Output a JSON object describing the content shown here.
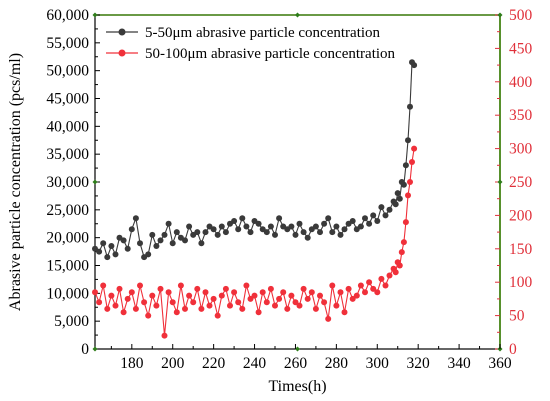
{
  "chart_data": {
    "type": "line",
    "xlabel": "Times(h)",
    "ylabel": "Abrasive particle concentration (pcs/ml)",
    "xlim": [
      162,
      360
    ],
    "xticks": [
      180,
      200,
      220,
      240,
      260,
      280,
      300,
      320,
      340,
      360
    ],
    "ylim_left": [
      0,
      60000
    ],
    "yticks_left": [
      0,
      5000,
      10000,
      15000,
      20000,
      25000,
      30000,
      35000,
      40000,
      45000,
      50000,
      55000,
      60000
    ],
    "ytick_labels_left": [
      "0",
      "5,000",
      "10,000",
      "15,000",
      "20,000",
      "25,000",
      "30,000",
      "35,000",
      "40,000",
      "45,000",
      "50,000",
      "55,000",
      "60,000"
    ],
    "ylim_right": [
      0,
      500
    ],
    "yticks_right": [
      0,
      50,
      100,
      150,
      200,
      250,
      300,
      350,
      400,
      450,
      500
    ],
    "ytick_labels_right": [
      "0",
      "50",
      "100",
      "150",
      "200",
      "250",
      "300",
      "350",
      "400",
      "450",
      "500"
    ],
    "legend_position": "top-left",
    "grid": false,
    "series": [
      {
        "name": "5-50μm abrasive particle concentration",
        "axis": "left",
        "color": "#3a3a3a",
        "marker": "circle",
        "x": [
          162,
          164,
          166,
          168,
          170,
          172,
          174,
          176,
          178,
          180,
          182,
          184,
          186,
          188,
          190,
          192,
          194,
          196,
          198,
          200,
          202,
          204,
          206,
          208,
          210,
          212,
          214,
          216,
          218,
          220,
          222,
          224,
          226,
          228,
          230,
          232,
          234,
          236,
          238,
          240,
          242,
          244,
          246,
          248,
          250,
          252,
          254,
          256,
          258,
          260,
          262,
          264,
          266,
          268,
          270,
          272,
          274,
          276,
          278,
          280,
          282,
          284,
          286,
          288,
          290,
          292,
          294,
          296,
          298,
          300,
          302,
          304,
          306,
          308,
          309,
          310,
          311,
          312,
          313,
          314,
          315,
          316,
          317,
          318
        ],
        "values": [
          18000,
          17500,
          19000,
          16500,
          18500,
          17000,
          20000,
          19500,
          18000,
          21500,
          23500,
          19000,
          16500,
          17000,
          20500,
          18500,
          19500,
          20500,
          22500,
          19000,
          21000,
          20000,
          19500,
          22000,
          20500,
          21000,
          19000,
          21000,
          22000,
          21500,
          20500,
          22000,
          21000,
          22500,
          23000,
          21500,
          23500,
          22000,
          21000,
          23000,
          22500,
          21500,
          21000,
          22000,
          20500,
          23500,
          22000,
          21500,
          22000,
          20500,
          22500,
          21000,
          20000,
          21500,
          22000,
          21000,
          22500,
          23500,
          21000,
          22000,
          20500,
          21500,
          22500,
          23000,
          21500,
          22000,
          23500,
          22500,
          24000,
          23000,
          25500,
          24000,
          25000,
          26500,
          26000,
          28000,
          27000,
          30000,
          29500,
          33000,
          37500,
          43500,
          51500,
          51000
        ]
      },
      {
        "name": "50-100μm abrasive particle concentration",
        "axis": "right",
        "color": "#f0303a",
        "marker": "circle",
        "x": [
          162,
          164,
          166,
          168,
          170,
          172,
          174,
          176,
          178,
          180,
          182,
          184,
          186,
          188,
          190,
          192,
          194,
          196,
          198,
          200,
          202,
          204,
          206,
          208,
          210,
          212,
          214,
          216,
          218,
          220,
          222,
          224,
          226,
          228,
          230,
          232,
          234,
          236,
          238,
          240,
          242,
          244,
          246,
          248,
          250,
          252,
          254,
          256,
          258,
          260,
          262,
          264,
          266,
          268,
          270,
          272,
          274,
          276,
          278,
          280,
          282,
          284,
          286,
          288,
          290,
          292,
          294,
          296,
          298,
          300,
          302,
          304,
          306,
          308,
          309,
          310,
          311,
          312,
          313,
          314,
          315,
          316,
          317,
          318
        ],
        "values": [
          85,
          70,
          95,
          60,
          80,
          65,
          90,
          55,
          75,
          85,
          60,
          95,
          70,
          50,
          80,
          65,
          90,
          20,
          85,
          70,
          55,
          95,
          60,
          80,
          70,
          90,
          60,
          85,
          65,
          75,
          50,
          80,
          90,
          65,
          85,
          70,
          60,
          95,
          75,
          80,
          55,
          85,
          70,
          90,
          65,
          75,
          85,
          60,
          80,
          70,
          65,
          90,
          75,
          85,
          60,
          80,
          70,
          45,
          95,
          65,
          85,
          55,
          90,
          75,
          80,
          95,
          85,
          100,
          90,
          85,
          105,
          95,
          110,
          120,
          115,
          130,
          125,
          145,
          160,
          190,
          230,
          250,
          280,
          300
        ]
      }
    ]
  }
}
